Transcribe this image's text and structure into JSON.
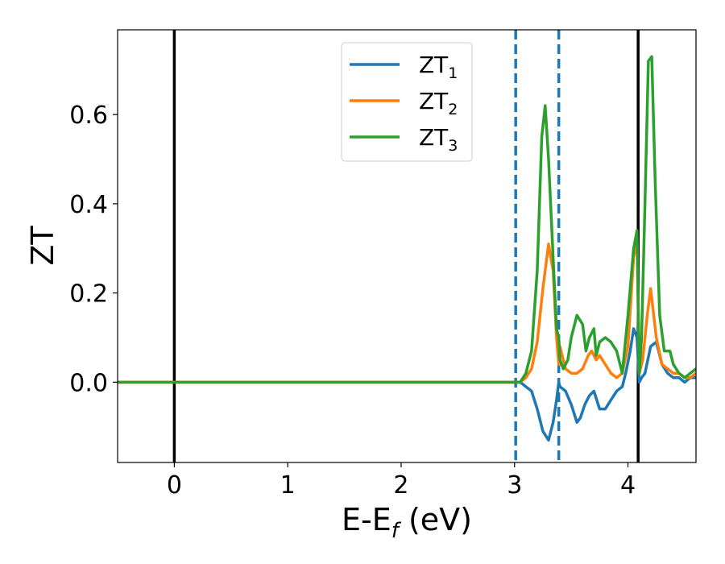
{
  "chart_data": {
    "type": "line",
    "xlabel": {
      "base": "E-E",
      "sub": "f",
      "unit": " (eV)"
    },
    "ylabel": "ZT",
    "xlim": [
      -0.5,
      4.6
    ],
    "ylim": [
      -0.18,
      0.79
    ],
    "x_ticks": [
      0,
      1,
      2,
      3,
      4
    ],
    "x_tick_labels": [
      "0",
      "1",
      "2",
      "3",
      "4"
    ],
    "y_ticks": [
      0.0,
      0.2,
      0.4,
      0.6
    ],
    "y_tick_labels": [
      "0.0",
      "0.2",
      "0.4",
      "0.6"
    ],
    "grid": false,
    "legend_position": "top-center",
    "vertical_lines": [
      {
        "x": 0.0,
        "style": "solid",
        "color": "#000000"
      },
      {
        "x": 3.01,
        "style": "dashed",
        "color": "#1f77b4"
      },
      {
        "x": 3.39,
        "style": "dashed",
        "color": "#1f77b4"
      },
      {
        "x": 4.09,
        "style": "solid",
        "color": "#000000"
      }
    ],
    "series": [
      {
        "name": "ZT",
        "name_sub": "1",
        "color": "#1f77b4",
        "x": [
          -0.5,
          2.9,
          3.0,
          3.05,
          3.1,
          3.15,
          3.2,
          3.25,
          3.3,
          3.34,
          3.37,
          3.39,
          3.4,
          3.45,
          3.5,
          3.55,
          3.58,
          3.62,
          3.66,
          3.7,
          3.75,
          3.8,
          3.85,
          3.9,
          3.95,
          3.98,
          4.02,
          4.05,
          4.08,
          4.1,
          4.12,
          4.15,
          4.2,
          4.25,
          4.3,
          4.35,
          4.4,
          4.45,
          4.5,
          4.55,
          4.6
        ],
        "y": [
          0.0,
          0.0,
          0.0,
          0.0,
          -0.01,
          -0.02,
          -0.06,
          -0.11,
          -0.13,
          -0.09,
          -0.04,
          0.0,
          -0.01,
          -0.02,
          -0.05,
          -0.09,
          -0.08,
          -0.05,
          -0.03,
          -0.02,
          -0.06,
          -0.06,
          -0.04,
          -0.02,
          -0.01,
          0.02,
          0.07,
          0.12,
          0.1,
          0.0,
          0.01,
          0.02,
          0.08,
          0.09,
          0.04,
          0.02,
          0.01,
          0.01,
          0.0,
          0.01,
          0.01
        ]
      },
      {
        "name": "ZT",
        "name_sub": "2",
        "color": "#ff7f0e",
        "x": [
          -0.5,
          2.9,
          3.0,
          3.05,
          3.1,
          3.15,
          3.2,
          3.25,
          3.3,
          3.34,
          3.37,
          3.39,
          3.4,
          3.45,
          3.5,
          3.55,
          3.6,
          3.65,
          3.68,
          3.72,
          3.75,
          3.8,
          3.85,
          3.9,
          3.95,
          4.0,
          4.05,
          4.08,
          4.1,
          4.13,
          4.17,
          4.2,
          4.25,
          4.3,
          4.35,
          4.4,
          4.45,
          4.5,
          4.55,
          4.6
        ],
        "y": [
          0.0,
          0.0,
          0.0,
          0.0,
          0.01,
          0.03,
          0.09,
          0.21,
          0.31,
          0.25,
          0.1,
          0.04,
          0.08,
          0.03,
          0.02,
          0.02,
          0.03,
          0.06,
          0.07,
          0.05,
          0.06,
          0.04,
          0.02,
          0.01,
          0.02,
          0.08,
          0.28,
          0.32,
          0.02,
          0.05,
          0.15,
          0.21,
          0.1,
          0.04,
          0.03,
          0.02,
          0.02,
          0.01,
          0.01,
          0.02
        ]
      },
      {
        "name": "ZT",
        "name_sub": "3",
        "color": "#2ca02c",
        "x": [
          -0.5,
          2.9,
          3.0,
          3.05,
          3.1,
          3.15,
          3.2,
          3.24,
          3.27,
          3.3,
          3.34,
          3.37,
          3.39,
          3.4,
          3.43,
          3.47,
          3.5,
          3.55,
          3.6,
          3.63,
          3.66,
          3.7,
          3.72,
          3.75,
          3.8,
          3.85,
          3.9,
          3.95,
          4.0,
          4.05,
          4.08,
          4.1,
          4.12,
          4.15,
          4.18,
          4.21,
          4.24,
          4.28,
          4.32,
          4.37,
          4.4,
          4.45,
          4.5,
          4.55,
          4.6
        ],
        "y": [
          0.0,
          0.0,
          0.0,
          0.0,
          0.02,
          0.07,
          0.25,
          0.55,
          0.62,
          0.5,
          0.28,
          0.12,
          0.1,
          0.05,
          0.03,
          0.05,
          0.1,
          0.15,
          0.13,
          0.07,
          0.1,
          0.12,
          0.06,
          0.09,
          0.1,
          0.09,
          0.07,
          0.02,
          0.15,
          0.3,
          0.34,
          0.02,
          0.1,
          0.4,
          0.72,
          0.73,
          0.45,
          0.15,
          0.07,
          0.07,
          0.04,
          0.02,
          0.01,
          0.02,
          0.03
        ]
      }
    ]
  }
}
